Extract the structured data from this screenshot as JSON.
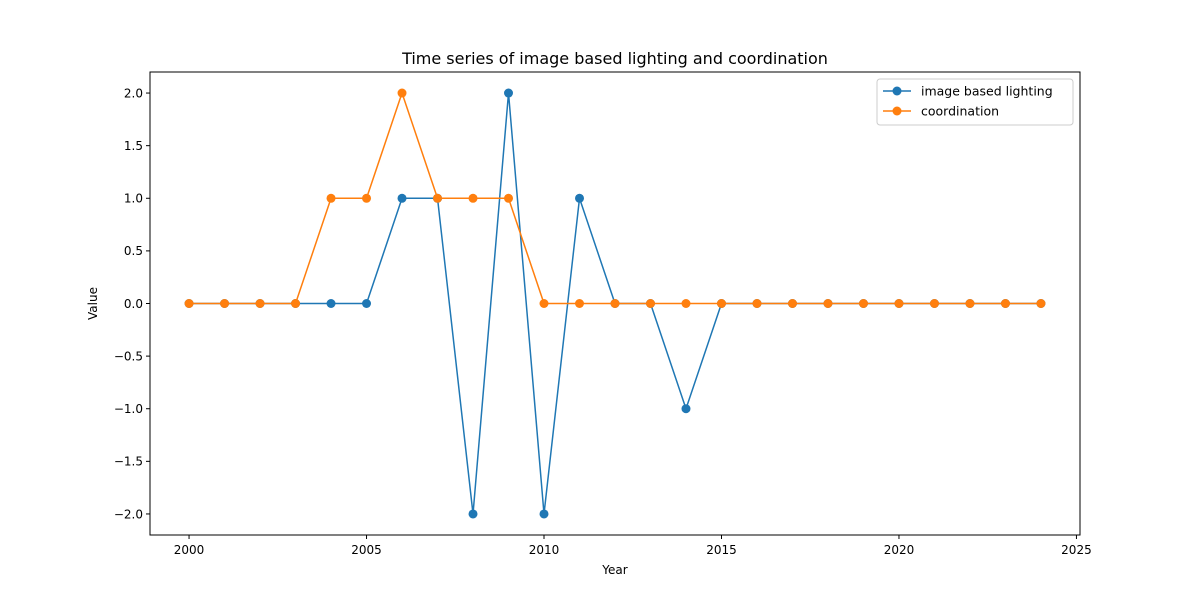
{
  "chart_data": {
    "type": "line",
    "title": "Time series of image based lighting and coordination",
    "xlabel": "Year",
    "ylabel": "Value",
    "xlim": [
      1998.9,
      2025.1
    ],
    "ylim": [
      -2.2,
      2.2
    ],
    "xticks": [
      2000,
      2005,
      2010,
      2015,
      2020,
      2025
    ],
    "yticks": [
      -2.0,
      -1.5,
      -1.0,
      -0.5,
      0.0,
      0.5,
      1.0,
      1.5,
      2.0
    ],
    "xtick_labels": [
      "2000",
      "2005",
      "2010",
      "2015",
      "2020",
      "2025"
    ],
    "ytick_labels": [
      "−2.0",
      "−1.5",
      "−1.0",
      "−0.5",
      "0.0",
      "0.5",
      "1.0",
      "1.5",
      "2.0"
    ],
    "grid": false,
    "legend": "top-right",
    "x": [
      2000,
      2001,
      2002,
      2003,
      2004,
      2005,
      2006,
      2007,
      2008,
      2009,
      2010,
      2011,
      2012,
      2013,
      2014,
      2015,
      2016,
      2017,
      2018,
      2019,
      2020,
      2021,
      2022,
      2023,
      2024
    ],
    "series": [
      {
        "name": "image based lighting",
        "color": "#1f77b4",
        "values": [
          0,
          0,
          0,
          0,
          0,
          0,
          1,
          1,
          -2,
          2,
          -2,
          1,
          0,
          0,
          -1,
          0,
          0,
          0,
          0,
          0,
          0,
          0,
          0,
          0,
          0
        ]
      },
      {
        "name": "coordination",
        "color": "#ff7f0e",
        "values": [
          0,
          0,
          0,
          0,
          1,
          1,
          2,
          1,
          1,
          1,
          0,
          0,
          0,
          0,
          0,
          0,
          0,
          0,
          0,
          0,
          0,
          0,
          0,
          0,
          0
        ]
      }
    ]
  }
}
